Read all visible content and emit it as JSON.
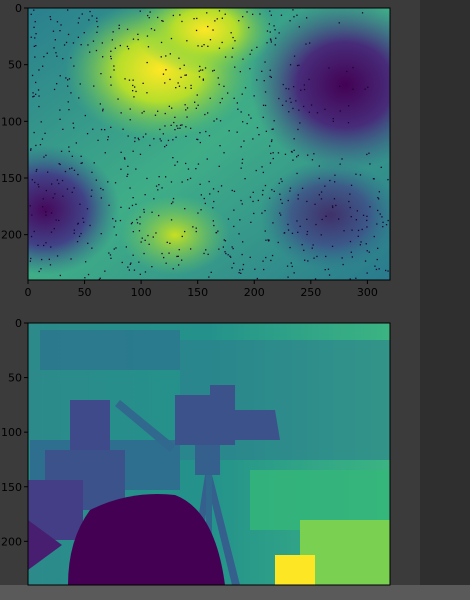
{
  "chart_data": [
    {
      "type": "heatmap",
      "title": "",
      "xlabel": "",
      "ylabel": "",
      "xlim": [
        0,
        320
      ],
      "ylim": [
        240,
        0
      ],
      "xticks": [
        0,
        50,
        100,
        150,
        200,
        250,
        300
      ],
      "yticks": [
        0,
        50,
        100,
        150,
        200
      ],
      "colormap": "viridis",
      "overlay": "scattered dark points",
      "colors": {
        "low": "#440154",
        "mid": "#21918c",
        "high": "#fde725"
      }
    },
    {
      "type": "heatmap",
      "title": "",
      "xlabel": "",
      "ylabel": "",
      "xlim": [
        0,
        320
      ],
      "ylim": [
        240,
        0
      ],
      "xticks": [],
      "yticks": [
        0,
        50,
        100,
        150,
        200
      ],
      "colormap": "viridis",
      "colors": {
        "low": "#440154",
        "mid": "#21918c",
        "high": "#fde725"
      }
    }
  ]
}
